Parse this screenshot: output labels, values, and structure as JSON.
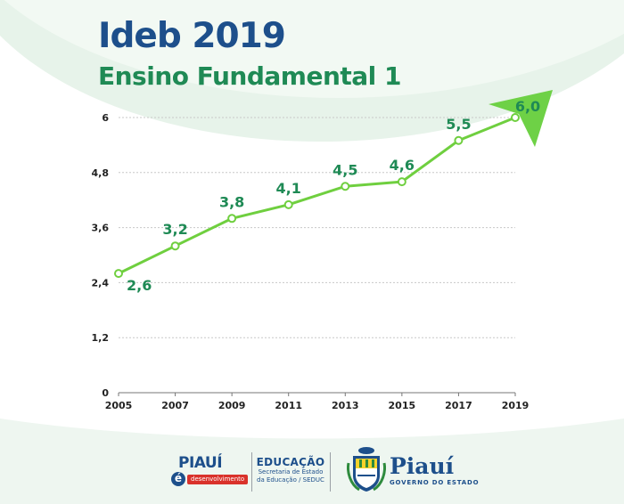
{
  "header": {
    "title": "Ideb 2019",
    "subtitle": "Ensino Fundamental 1"
  },
  "colors": {
    "title": "#1d4f8b",
    "subtitle": "#1f8a55",
    "line": "#6fcf3f",
    "label": "#1f8a55",
    "arrow": "#6ed146",
    "grid": "#c8c8c8"
  },
  "chart_data": {
    "type": "line",
    "title": "Ideb 2019",
    "subtitle": "Ensino Fundamental 1",
    "x": [
      "2005",
      "2007",
      "2009",
      "2011",
      "2013",
      "2015",
      "2017",
      "2019"
    ],
    "y": [
      2.6,
      3.2,
      3.8,
      4.1,
      4.5,
      4.6,
      5.5,
      6.0
    ],
    "data_labels": [
      "2,6",
      "3,2",
      "3,8",
      "4,1",
      "4,5",
      "4,6",
      "5,5",
      "6,0"
    ],
    "yticks": [
      0,
      1.2,
      2.4,
      3.6,
      4.8,
      6
    ],
    "ytick_labels": [
      "0",
      "1,2",
      "2,4",
      "3,6",
      "4,8",
      "6"
    ],
    "ylim": [
      0,
      6
    ],
    "xlabel": "",
    "ylabel": "",
    "grid": "horizontal-dashed",
    "legend": "none",
    "trend_arrow": "up-right"
  },
  "footer": {
    "piaui_desenvolvimento": {
      "name": "PIAUÍ",
      "e": "é",
      "tag": "desenvolvimento"
    },
    "educacao": {
      "name": "EDUCAÇÃO",
      "sub1": "Secretaria de Estado",
      "sub2": "da Educação / SEDUC"
    },
    "crest_icon": "piaui-coat-of-arms-icon",
    "governo": {
      "name": "Piauí",
      "sub": "GOVERNO DO ESTADO"
    }
  }
}
